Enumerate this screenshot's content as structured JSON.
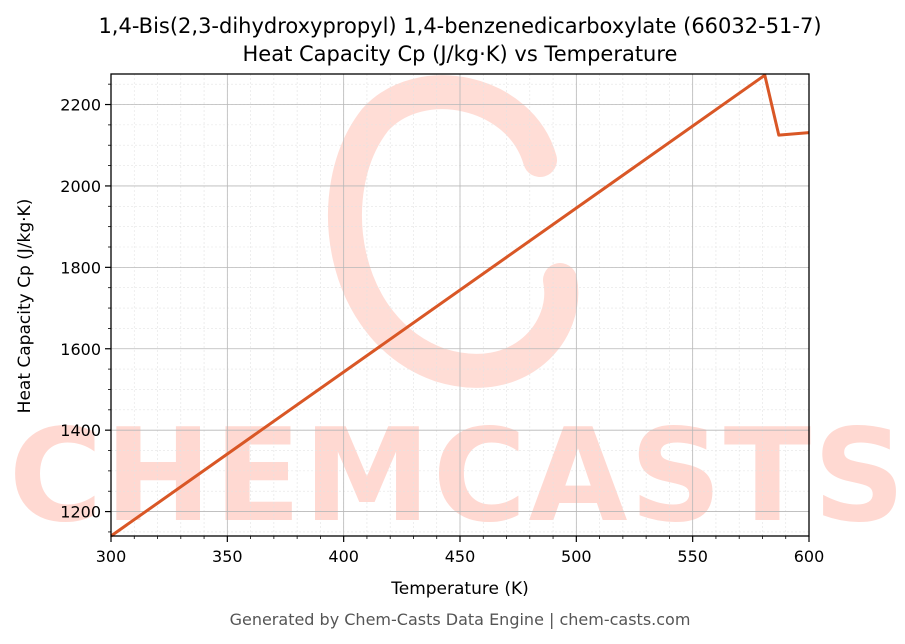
{
  "chart_data": {
    "type": "line",
    "title": "1,4-Bis(2,3-dihydroxypropyl) 1,4-benzenedicarboxylate (66032-51-7)",
    "subtitle": "Heat Capacity Cp (J/kg·K) vs Temperature",
    "xlabel": "Temperature (K)",
    "ylabel": "Heat Capacity Cp (J/kg·K)",
    "xlim": [
      300,
      600
    ],
    "ylim": [
      1140,
      2275
    ],
    "xticks": [
      300,
      350,
      400,
      450,
      500,
      550,
      600
    ],
    "yticks": [
      1200,
      1400,
      1600,
      1800,
      2000,
      2200
    ],
    "grid": true,
    "series": [
      {
        "color": "#d95726",
        "x": [
          300,
          581,
          587,
          600
        ],
        "y": [
          1140,
          2272,
          2125,
          2131
        ]
      }
    ],
    "footer": "Generated by Chem-Casts Data Engine | chem-casts.com",
    "watermark": "CHEMCASTS"
  }
}
